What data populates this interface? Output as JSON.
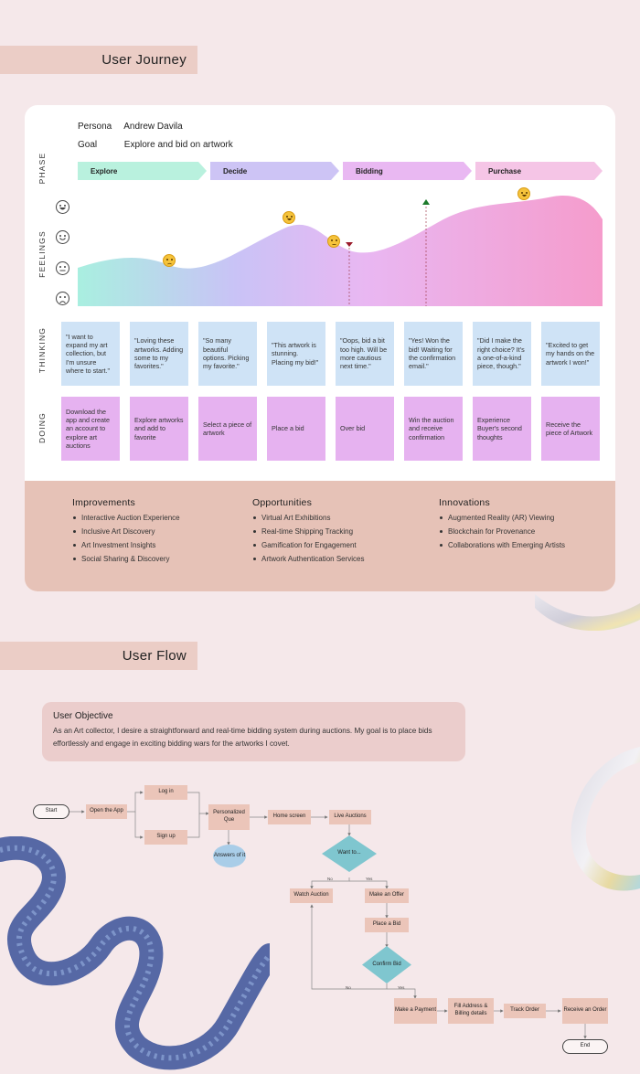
{
  "journey": {
    "section_title": "User Journey",
    "persona_label": "Persona",
    "persona_value": "Andrew Davila",
    "goal_label": "Goal",
    "goal_value": "Explore and bid on artwork",
    "row_labels": {
      "phase": "PHASE",
      "feelings": "FEELINGS",
      "thinking": "THINKING",
      "doing": "DOING"
    },
    "phases": [
      {
        "label": "Explore",
        "color": "#b9f1de"
      },
      {
        "label": "Decide",
        "color": "#cdc4f5"
      },
      {
        "label": "Bidding",
        "color": "#e9b8f2"
      },
      {
        "label": "Purchase",
        "color": "#f5c5e6"
      }
    ],
    "thinking": [
      "\"I want to expand my art collection, but I'm unsure where to start.\"",
      "\"Loving these artworks. Adding some to my favorites.\"",
      "\"So many beautiful options. Picking my favorite.\"",
      "\"This artwork is stunning. Placing my bid!\"",
      "\"Oops, bid a bit too high. Will be more cautious next time.\"",
      "\"Yes! Won the bid! Waiting for the confirmation email.\"",
      "\"Did I make the right choice? It's a one-of-a-kind piece, though.\"",
      "\"Excited to get my hands on the artwork I won!\""
    ],
    "doing": [
      "Download the app and create an account to explore art auctions",
      "Explore artworks and add to favorite",
      "Select a piece of artwork",
      "Place a bid",
      "Over bid",
      "Win the auction and receive confirmation",
      "Experience Buyer's second thoughts",
      "Receive the piece of Artwork"
    ]
  },
  "ioi": {
    "improvements": {
      "title": "Improvements",
      "items": [
        "Interactive Auction Experience",
        "Inclusive Art Discovery",
        "Art Investment Insights",
        "Social Sharing & Discovery"
      ]
    },
    "opportunities": {
      "title": "Opportunities",
      "items": [
        "Virtual Art Exhibitions",
        "Real-time Shipping Tracking",
        "Gamification for Engagement",
        "Artwork Authentication Services"
      ]
    },
    "innovations": {
      "title": "Innovations",
      "items": [
        "Augmented Reality (AR) Viewing",
        "Blockchain for Provenance",
        "Collaborations with Emerging Artists"
      ]
    }
  },
  "flow": {
    "section_title": "User Flow",
    "objective_title": "User Objective",
    "objective_text": "As an Art collector, I desire a straightforward and real-time bidding system during auctions. My goal is to place bids effortlessly and engage in exciting bidding wars for the artworks I covet.",
    "nodes": {
      "start": "Start",
      "open_app": "Open the App",
      "login": "Log in",
      "signup": "Sign up",
      "personalized": "Personalized Que",
      "answers": "Answers of it",
      "home": "Home screen",
      "live": "Live Auctions",
      "want": "Want to...",
      "watch": "Watch Auction",
      "offer": "Make an Offer",
      "place": "Place a Bid",
      "confirm": "Confirm Bid",
      "payment": "Make a Payment",
      "fill": "Fill Address & Billing details",
      "track": "Track Order",
      "receive": "Receive an Order",
      "end": "End"
    },
    "labels": {
      "no1": "No",
      "yes1": "Yes",
      "no2": "No",
      "yes2": "Yes"
    }
  }
}
